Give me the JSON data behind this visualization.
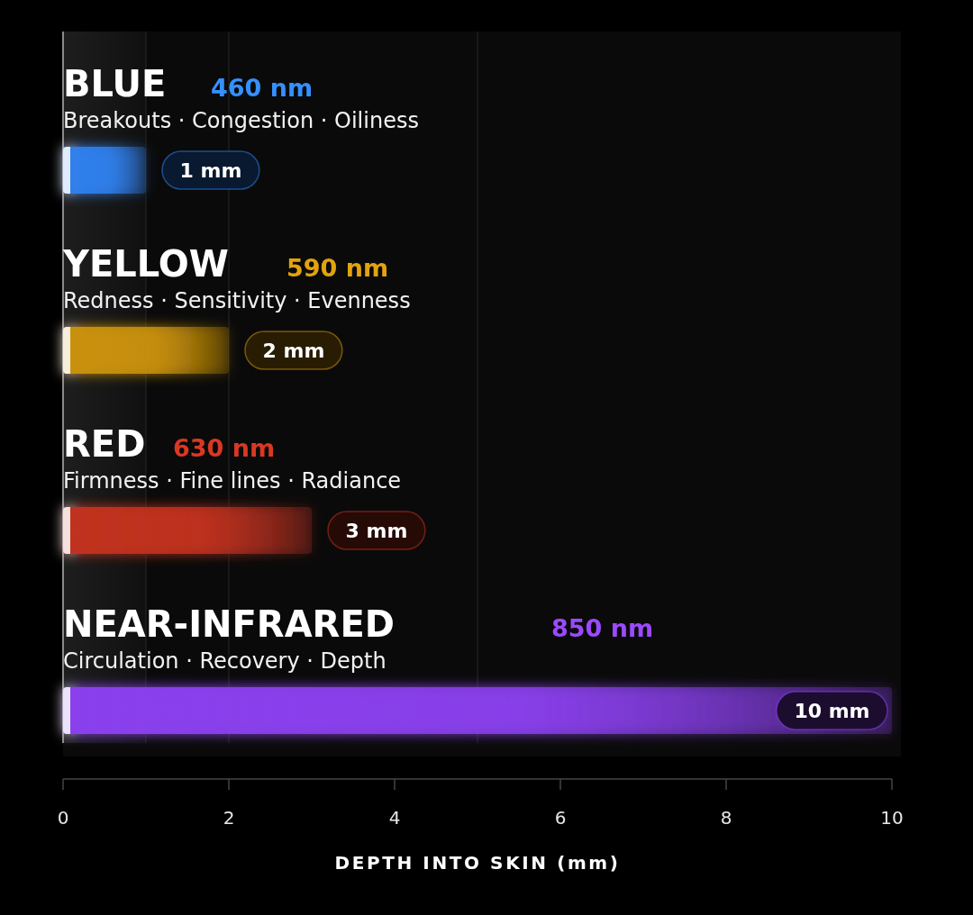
{
  "chart_data": {
    "type": "bar",
    "orientation": "horizontal",
    "categories": [
      "BLUE",
      "YELLOW",
      "RED",
      "NEAR-INFRARED"
    ],
    "values": [
      1,
      2,
      3,
      10
    ],
    "colors": [
      "#2f7fec",
      "#c8900c",
      "#c0311f",
      "#8a40ec"
    ],
    "value_labels": [
      "1 mm",
      "2 mm",
      "3 mm",
      "10 mm"
    ],
    "xlim": [
      0,
      10
    ],
    "xticks": [
      0,
      2,
      4,
      6,
      8,
      10
    ],
    "xlabel": "DEPTH INTO SKIN (mm)",
    "annotations": [
      "460 nm",
      "Breakouts · Congestion · Oiliness",
      "590 nm",
      "Redness · Sensitivity · Evenness",
      "630 nm",
      "Firmness · Fine lines · Radiance",
      "850 nm",
      "Circulation · Recovery · Depth"
    ],
    "ref_lines": [
      {
        "axis": "x",
        "value": 1,
        "color": "#262626"
      },
      {
        "axis": "x",
        "value": 2,
        "color": "#262626"
      },
      {
        "axis": "x",
        "value": 5,
        "color": "#262626"
      }
    ],
    "bands": [
      {
        "axis": "x",
        "from": 0,
        "to": 1,
        "color": "#1e1e1e"
      }
    ]
  }
}
